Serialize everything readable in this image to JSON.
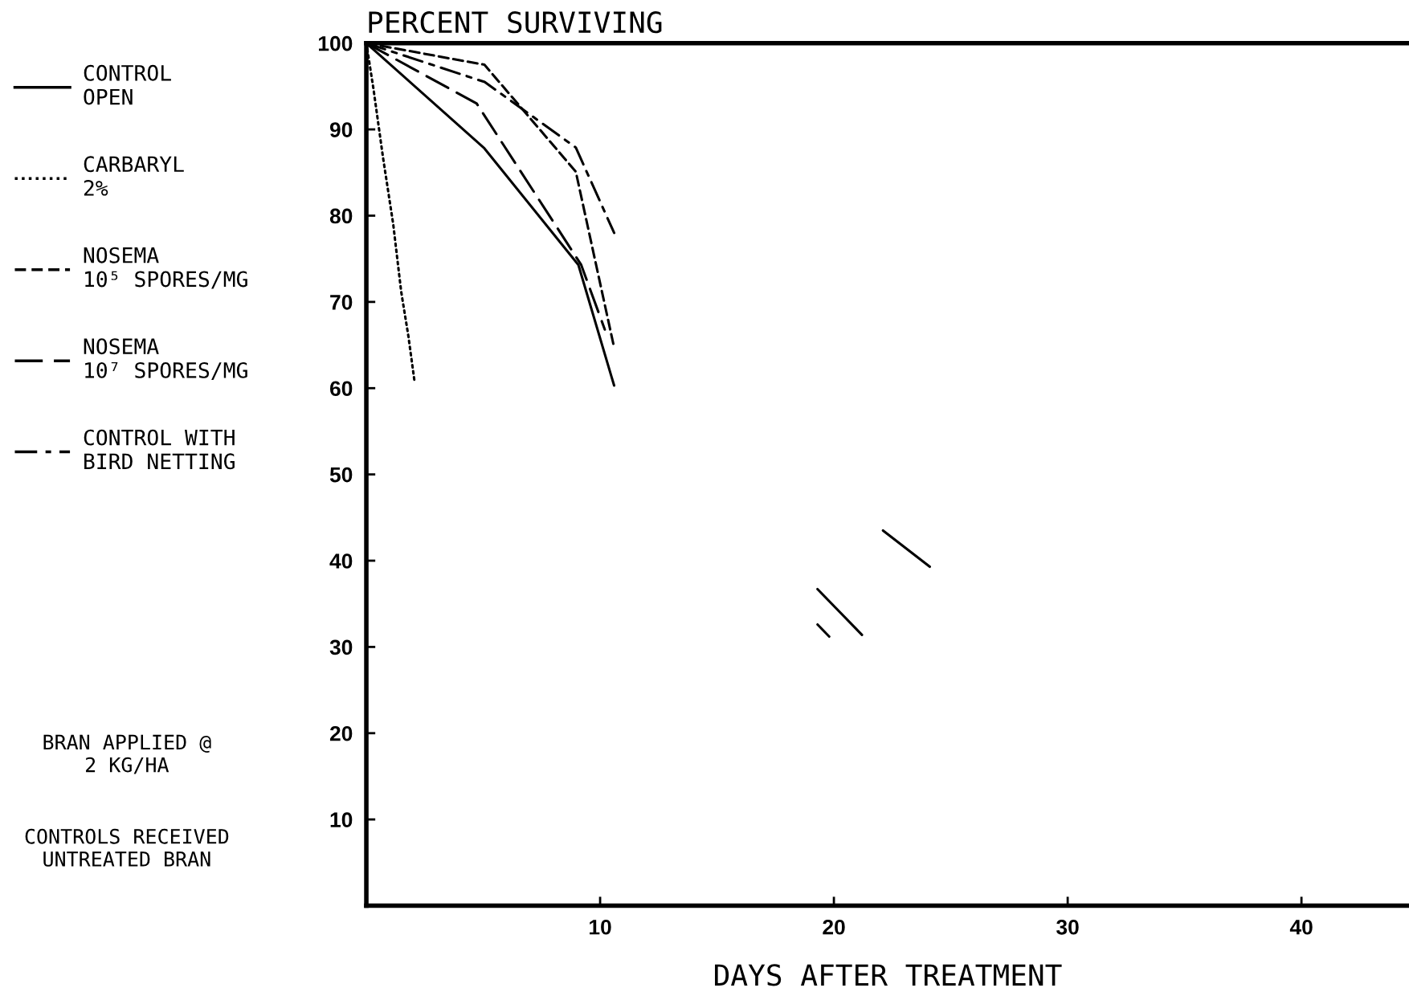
{
  "chart_data": {
    "type": "line",
    "ylabel": "PERCENT SURVIVING",
    "xlabel": "DAYS AFTER TREATMENT",
    "xlim": [
      0,
      44.6
    ],
    "ylim": [
      0,
      100
    ],
    "xticks": [
      10,
      20,
      30,
      40
    ],
    "yticks": [
      10,
      20,
      30,
      40,
      50,
      60,
      70,
      80,
      90,
      100
    ],
    "grid": false,
    "legend": "left",
    "marker": "none",
    "series": [
      {
        "name": "CONTROL\nOPEN",
        "color": "#000000",
        "line_style": "solid",
        "x": [
          0,
          5.05,
          9.07,
          10.6
        ],
        "values": [
          100,
          87.8,
          74.3,
          60.3
        ]
      },
      {
        "name": "CARBARYL\n2%",
        "color": "#000000",
        "line_style": "dotted",
        "x": [
          0,
          0.31,
          0.71,
          1.15,
          1.49,
          1.8,
          2.06
        ],
        "values": [
          100,
          94.6,
          86.8,
          79.0,
          71.2,
          66.0,
          60.8
        ]
      },
      {
        "name": "NOSEMA\n10⁵ SPORES/MG",
        "color": "#000000",
        "line_style": "dashed",
        "x": [
          0,
          5.05,
          8.96,
          10.6
        ],
        "values": [
          100,
          97.5,
          85.1,
          64.7
        ]
      },
      {
        "name": "NOSEMA\n10⁷ SPORES/MG",
        "color": "#000000",
        "line_style": "longdash",
        "x": [
          0,
          4.72,
          9.19,
          10.2
        ],
        "values": [
          100,
          93.0,
          74.3,
          66.8
        ]
      },
      {
        "name": "CONTROL WITH\nBIRD NETTING",
        "color": "#000000",
        "line_style": "dashdot",
        "x": [
          0,
          5.06,
          8.96,
          10.6
        ],
        "values": [
          100,
          95.5,
          87.9,
          78.0
        ]
      },
      {
        "color": "#000000",
        "line_style": "solid",
        "x": [
          19.3,
          21.2,
          null,
          19.3,
          19.8,
          null,
          22.1,
          24.1
        ],
        "values": [
          36.7,
          31.4,
          null,
          32.6,
          31.2,
          null,
          43.5,
          39.3
        ]
      }
    ],
    "annotations": [
      "BRAN APPLIED @\n2 KG/HA",
      "CONTROLS RECEIVED\nUNTREATED BRAN"
    ]
  }
}
